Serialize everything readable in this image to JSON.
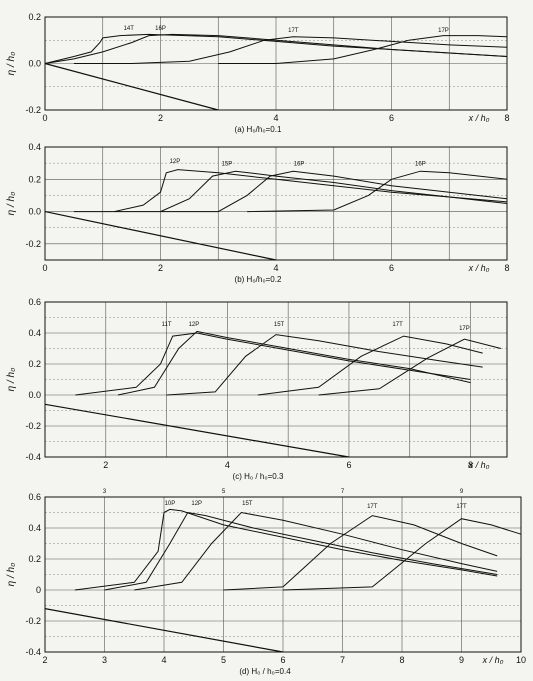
{
  "chart_data": [
    {
      "type": "line",
      "caption": "(a) H₀/h₀=0.1",
      "ylabel": "η / h₀",
      "xlabel": "x / h₀",
      "xlim": [
        0,
        8
      ],
      "ylim": [
        -0.2,
        0.2
      ],
      "xticks": [
        "0",
        "2",
        "4",
        "6",
        "8"
      ],
      "yticks": [
        "-0.2",
        "0.0",
        "0.2"
      ],
      "grid": true,
      "series_labels": [
        "14T",
        "16P",
        "17T",
        "17P"
      ],
      "series": [
        {
          "x": [
            0,
            0.5,
            0.8,
            0.95,
            1.0,
            1.3,
            1.8,
            3,
            4,
            5,
            6,
            7,
            8
          ],
          "y": [
            0,
            0.03,
            0.05,
            0.09,
            0.11,
            0.12,
            0.125,
            0.115,
            0.095,
            0.075,
            0.06,
            0.045,
            0.03
          ]
        },
        {
          "x": [
            0,
            0.5,
            1.0,
            1.5,
            1.8,
            2.2,
            3,
            4,
            5,
            6,
            7,
            8
          ],
          "y": [
            0,
            0.02,
            0.05,
            0.09,
            0.12,
            0.125,
            0.12,
            0.1,
            0.08,
            0.06,
            0.045,
            0.03
          ]
        },
        {
          "x": [
            0.5,
            1.5,
            2.5,
            3.2,
            3.8,
            4.3,
            5,
            6,
            7,
            8
          ],
          "y": [
            0,
            0,
            0.01,
            0.05,
            0.1,
            0.115,
            0.11,
            0.095,
            0.08,
            0.07
          ]
        },
        {
          "x": [
            3,
            4,
            5,
            5.7,
            6.3,
            6.9,
            7.5,
            8
          ],
          "y": [
            0,
            0,
            0.02,
            0.06,
            0.1,
            0.12,
            0.12,
            0.115
          ]
        },
        {
          "x": [
            0,
            3
          ],
          "y": [
            0,
            -0.2
          ]
        }
      ]
    },
    {
      "type": "line",
      "caption": "(b) H₀/h₀=0.2",
      "ylabel": "η / h₀",
      "xlabel": "x / h₀",
      "xlim": [
        0,
        8
      ],
      "ylim": [
        -0.3,
        0.4
      ],
      "xticks": [
        "0",
        "2",
        "4",
        "6",
        "8"
      ],
      "yticks": [
        "-0.2",
        "0.0",
        "0.2",
        "0.4"
      ],
      "grid": true,
      "series_labels": [
        "12P",
        "15P",
        "16P",
        "16P"
      ],
      "series": [
        {
          "x": [
            0.5,
            1.2,
            1.7,
            2.0,
            2.1,
            2.3,
            3,
            4,
            5,
            6,
            7,
            8
          ],
          "y": [
            0,
            0,
            0.04,
            0.12,
            0.24,
            0.26,
            0.24,
            0.2,
            0.16,
            0.12,
            0.09,
            0.05
          ]
        },
        {
          "x": [
            1.2,
            2.0,
            2.5,
            2.9,
            3.3,
            4,
            5,
            6,
            7,
            8
          ],
          "y": [
            0,
            0,
            0.08,
            0.22,
            0.25,
            0.22,
            0.18,
            0.13,
            0.09,
            0.06
          ]
        },
        {
          "x": [
            2,
            3,
            3.5,
            3.9,
            4.3,
            5,
            6,
            7,
            8
          ],
          "y": [
            0,
            0,
            0.1,
            0.22,
            0.25,
            0.22,
            0.16,
            0.12,
            0.08
          ]
        },
        {
          "x": [
            3.5,
            5,
            5.6,
            6.0,
            6.5,
            7,
            8
          ],
          "y": [
            0,
            0.01,
            0.1,
            0.2,
            0.25,
            0.24,
            0.2
          ]
        },
        {
          "x": [
            0,
            4
          ],
          "y": [
            0,
            -0.3
          ]
        }
      ]
    },
    {
      "type": "line",
      "caption": "(c) H₀ / h₀=0.3",
      "ylabel": "η / h₀",
      "xlabel": "x / h₀",
      "xlim": [
        1,
        8.6
      ],
      "ylim": [
        -0.4,
        0.6
      ],
      "xticks": [
        "2",
        "4",
        "6",
        "8"
      ],
      "yticks": [
        "-0.4",
        "-0.2",
        "0.0",
        "0.2",
        "0.4",
        "0.6"
      ],
      "grid": true,
      "series_labels": [
        "11T",
        "12P",
        "15T",
        "17T",
        "17P"
      ],
      "series": [
        {
          "x": [
            1.5,
            2.5,
            2.9,
            3.1,
            3.5,
            4,
            5,
            6,
            7,
            8
          ],
          "y": [
            0,
            0.05,
            0.2,
            0.38,
            0.4,
            0.36,
            0.29,
            0.22,
            0.16,
            0.1
          ]
        },
        {
          "x": [
            2.2,
            2.8,
            3.2,
            3.5,
            4,
            5,
            6,
            7,
            8
          ],
          "y": [
            0,
            0.05,
            0.3,
            0.41,
            0.37,
            0.3,
            0.23,
            0.17,
            0.08
          ]
        },
        {
          "x": [
            3,
            3.8,
            4.3,
            4.8,
            5.5,
            6.5,
            7.5,
            8.2
          ],
          "y": [
            0,
            0.02,
            0.25,
            0.39,
            0.35,
            0.28,
            0.22,
            0.18
          ]
        },
        {
          "x": [
            4.5,
            5.5,
            6.2,
            6.9,
            7.6,
            8.2
          ],
          "y": [
            0,
            0.05,
            0.25,
            0.38,
            0.33,
            0.27
          ]
        },
        {
          "x": [
            5.5,
            6.5,
            7.3,
            7.9,
            8.5
          ],
          "y": [
            0,
            0.04,
            0.24,
            0.36,
            0.3
          ]
        },
        {
          "x": [
            1,
            6
          ],
          "y": [
            -0.06,
            -0.4
          ]
        }
      ]
    },
    {
      "type": "line",
      "caption": "(d) H₀ / h₀=0.4",
      "ylabel": "η / h₀",
      "xlabel": "x / h₀",
      "xlim": [
        2,
        10
      ],
      "ylim": [
        -0.4,
        0.6
      ],
      "xticks": [
        "2",
        "3",
        "4",
        "5",
        "6",
        "7",
        "8",
        "9",
        "10"
      ],
      "xticks_top": [
        "3",
        "5",
        "7",
        "9"
      ],
      "yticks": [
        "-0.4",
        "-0.2",
        "0",
        "0.2",
        "0.4",
        "0.6"
      ],
      "grid": true,
      "series_labels": [
        "10P",
        "12P",
        "15T",
        "17T",
        "17T"
      ],
      "series": [
        {
          "x": [
            2.5,
            3.5,
            3.9,
            4.0,
            4.1,
            4.3,
            5,
            6,
            7,
            8,
            9,
            9.6
          ],
          "y": [
            0,
            0.05,
            0.25,
            0.5,
            0.52,
            0.51,
            0.42,
            0.34,
            0.26,
            0.19,
            0.13,
            0.09
          ]
        },
        {
          "x": [
            3,
            3.7,
            4.1,
            4.4,
            4.7,
            5.5,
            6.5,
            7.5,
            8.5,
            9.6
          ],
          "y": [
            0,
            0.05,
            0.3,
            0.5,
            0.48,
            0.4,
            0.32,
            0.24,
            0.17,
            0.1
          ]
        },
        {
          "x": [
            3.5,
            4.3,
            4.8,
            5.3,
            6,
            7,
            8,
            9,
            9.6
          ],
          "y": [
            0,
            0.05,
            0.3,
            0.5,
            0.45,
            0.36,
            0.26,
            0.17,
            0.12
          ]
        },
        {
          "x": [
            5,
            6,
            6.8,
            7.5,
            8.2,
            9,
            9.6
          ],
          "y": [
            0,
            0.02,
            0.3,
            0.48,
            0.42,
            0.3,
            0.22
          ]
        },
        {
          "x": [
            6,
            7.5,
            8.4,
            9.0,
            9.5,
            10
          ],
          "y": [
            0,
            0.02,
            0.3,
            0.46,
            0.42,
            0.36
          ]
        },
        {
          "x": [
            2,
            6
          ],
          "y": [
            -0.12,
            -0.4
          ]
        }
      ]
    }
  ]
}
